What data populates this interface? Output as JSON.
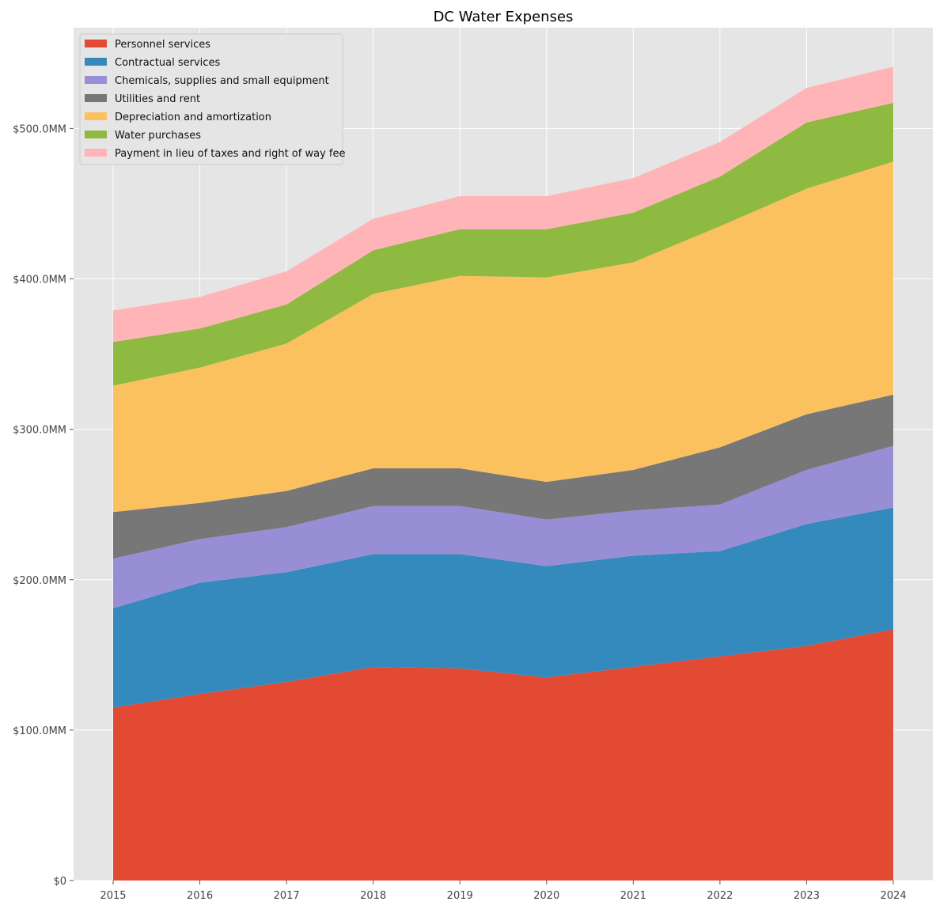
{
  "chart_data": {
    "type": "area",
    "stacked": true,
    "title": "DC Water Expenses",
    "xlabel": "",
    "ylabel": "",
    "x": [
      "2015",
      "2016",
      "2017",
      "2018",
      "2019",
      "2020",
      "2021",
      "2022",
      "2023",
      "2024"
    ],
    "ylim": [
      0,
      567
    ],
    "yticks": [
      {
        "value": 0,
        "label": "$0"
      },
      {
        "value": 100,
        "label": "$100.0MM"
      },
      {
        "value": 200,
        "label": "$200.0MM"
      },
      {
        "value": 300,
        "label": "$300.0MM"
      },
      {
        "value": 400,
        "label": "$400.0MM"
      },
      {
        "value": 500,
        "label": "$500.0MM"
      }
    ],
    "grid": true,
    "legend_position": "top-left",
    "series": [
      {
        "name": "Personnel services",
        "color": "#E24A33",
        "values": [
          115,
          124,
          132,
          142,
          141,
          135,
          142,
          149,
          156,
          167
        ]
      },
      {
        "name": "Contractual services",
        "color": "#348ABD",
        "values": [
          66,
          74,
          73,
          75,
          76,
          74,
          74,
          70,
          81,
          81
        ]
      },
      {
        "name": "Chemicals, supplies and small equipment",
        "color": "#988ED5",
        "values": [
          33,
          29,
          30,
          32,
          32,
          31,
          30,
          31,
          36,
          41
        ]
      },
      {
        "name": "Utilities and rent",
        "color": "#777777",
        "values": [
          31,
          24,
          24,
          25,
          25,
          25,
          27,
          38,
          37,
          34
        ]
      },
      {
        "name": "Depreciation and amortization",
        "color": "#FBC15E",
        "values": [
          84,
          90,
          98,
          116,
          128,
          136,
          138,
          147,
          150,
          155
        ]
      },
      {
        "name": "Water purchases",
        "color": "#8EBA42",
        "values": [
          29,
          26,
          26,
          29,
          31,
          32,
          33,
          33,
          44,
          39
        ]
      },
      {
        "name": "Payment in lieu of taxes and right of way fee",
        "color": "#FFB5B8",
        "values": [
          21,
          21,
          22,
          21,
          22,
          22,
          23,
          23,
          23,
          24
        ]
      }
    ]
  },
  "colors": {
    "plot_background": "#E5E5E5",
    "grid": "#FFFFFF",
    "legend_background": "#E5E5E5",
    "legend_border": "#CCCCCC"
  }
}
